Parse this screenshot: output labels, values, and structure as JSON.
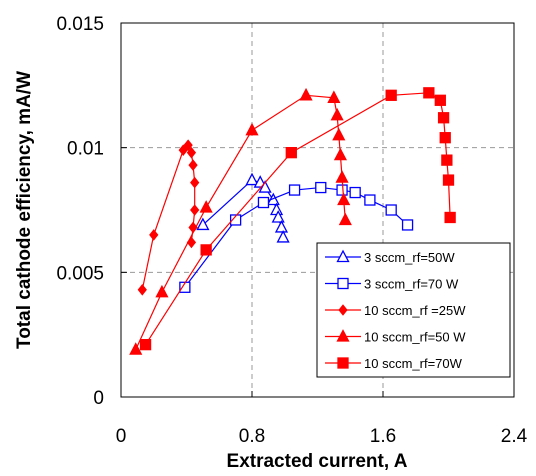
{
  "chart_data": {
    "type": "scatter",
    "title": "",
    "xlabel": "Extracted current, A",
    "ylabel": "Total cathode efficiency, mA/W",
    "xlim": [
      0,
      2.4
    ],
    "ylim": [
      0,
      0.015
    ],
    "x_ticks": [
      0,
      0.8,
      1.6,
      2.4
    ],
    "x_tick_labels": [
      "0",
      "0.8",
      "1.6",
      "2.4"
    ],
    "y_ticks": [
      0,
      0.005,
      0.01,
      0.015
    ],
    "y_tick_labels": [
      "0",
      "0.005",
      "0.01",
      "0.015"
    ],
    "grid": true,
    "legend_position": "lower-right",
    "series": [
      {
        "name": "3 sccm_rf=50W",
        "color": "#0000ff",
        "marker": "triangle-open",
        "x": [
          0.5,
          0.8,
          0.85,
          0.88,
          0.93,
          0.95,
          0.96,
          0.98,
          0.99
        ],
        "y": [
          0.0069,
          0.0087,
          0.0086,
          0.0084,
          0.0079,
          0.0075,
          0.0072,
          0.0068,
          0.0064
        ]
      },
      {
        "name": "3 sccm_rf=70 W",
        "color": "#0000ff",
        "marker": "square-open",
        "x": [
          0.39,
          0.7,
          0.87,
          1.06,
          1.22,
          1.35,
          1.43,
          1.52,
          1.65,
          1.75
        ],
        "y": [
          0.0044,
          0.0071,
          0.0078,
          0.0083,
          0.0084,
          0.0083,
          0.0082,
          0.0079,
          0.0075,
          0.0069
        ]
      },
      {
        "name": "10 sccm_rf =25W",
        "color": "#ff0000",
        "marker": "diamond",
        "x": [
          0.13,
          0.2,
          0.38,
          0.41,
          0.43,
          0.44,
          0.45,
          0.45,
          0.44,
          0.43
        ],
        "y": [
          0.0043,
          0.0065,
          0.0099,
          0.0101,
          0.0098,
          0.0093,
          0.0086,
          0.0075,
          0.0068,
          0.0062
        ]
      },
      {
        "name": "10 sccm_rf=50 W",
        "color": "#ff0000",
        "marker": "triangle",
        "x": [
          0.09,
          0.25,
          0.52,
          0.8,
          1.13,
          1.3,
          1.32,
          1.33,
          1.34,
          1.35,
          1.36,
          1.37
        ],
        "y": [
          0.0019,
          0.0042,
          0.0076,
          0.0107,
          0.0121,
          0.012,
          0.0113,
          0.0105,
          0.0097,
          0.0088,
          0.0079,
          0.0071
        ]
      },
      {
        "name": "10 sccm_rf=70W",
        "color": "#ff0000",
        "marker": "square",
        "x": [
          0.15,
          0.52,
          1.04,
          1.65,
          1.88,
          1.95,
          1.97,
          1.98,
          1.99,
          2.0,
          2.01
        ],
        "y": [
          0.0021,
          0.0059,
          0.0098,
          0.0121,
          0.0122,
          0.0119,
          0.0112,
          0.0104,
          0.0095,
          0.0087,
          0.0072
        ]
      }
    ]
  }
}
